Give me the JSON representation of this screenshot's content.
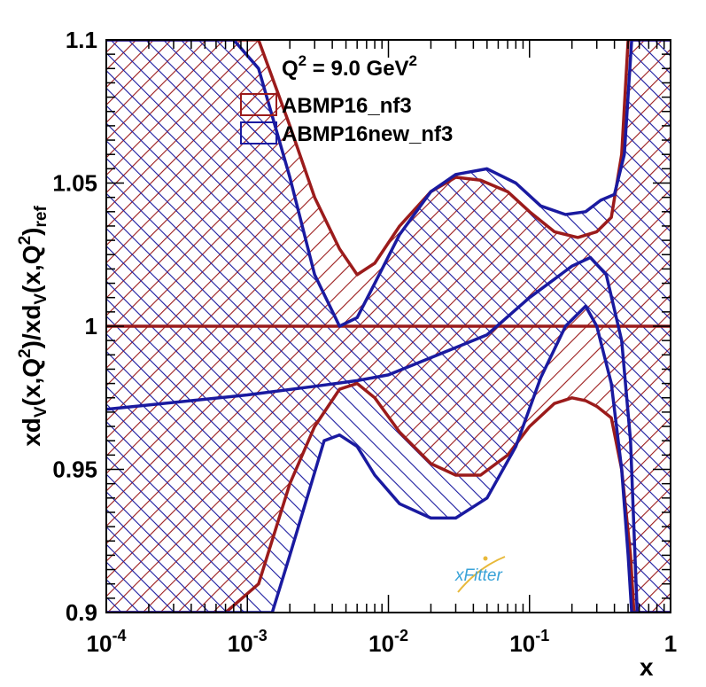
{
  "chart_data": {
    "type": "area",
    "x_scale": "log",
    "xlim": [
      0.0001,
      1
    ],
    "ylim": [
      0.9,
      1.1
    ],
    "xlabel": "x",
    "ylabel_parts": [
      "xd",
      "V",
      "(x,Q",
      "2",
      ")/xd",
      "V",
      "(x,Q",
      "2",
      ")",
      "ref"
    ],
    "x_tick_labels": [
      {
        "value": 0.0001,
        "base": "10",
        "exp": "-4"
      },
      {
        "value": 0.001,
        "base": "10",
        "exp": "-3"
      },
      {
        "value": 0.01,
        "base": "10",
        "exp": "-2"
      },
      {
        "value": 0.1,
        "base": "10",
        "exp": "-1"
      },
      {
        "value": 1,
        "base": "1",
        "exp": ""
      }
    ],
    "y_tick_labels": [
      {
        "value": 0.9,
        "label": "0.9"
      },
      {
        "value": 0.95,
        "label": "0.95"
      },
      {
        "value": 1.0,
        "label": "1"
      },
      {
        "value": 1.05,
        "label": "1.05"
      },
      {
        "value": 1.1,
        "label": "1.1"
      }
    ],
    "legend_title": {
      "text": "Q",
      "sup": "2",
      "rest": " = 9.0 GeV",
      "sup2": "2"
    },
    "legend_position": "top-center",
    "series": [
      {
        "name": "ABMP16_nf3",
        "color": "#9b1b1b",
        "hatch": "diagonal",
        "central": [
          [
            0.0001,
            1.0
          ],
          [
            1,
            1.0
          ]
        ],
        "upper": [
          [
            0.0001,
            1.1
          ],
          [
            0.0012,
            1.1
          ],
          [
            0.002,
            1.07
          ],
          [
            0.003,
            1.045
          ],
          [
            0.0045,
            1.027
          ],
          [
            0.006,
            1.018
          ],
          [
            0.008,
            1.022
          ],
          [
            0.012,
            1.035
          ],
          [
            0.02,
            1.047
          ],
          [
            0.03,
            1.052
          ],
          [
            0.045,
            1.051
          ],
          [
            0.07,
            1.047
          ],
          [
            0.1,
            1.04
          ],
          [
            0.15,
            1.033
          ],
          [
            0.22,
            1.031
          ],
          [
            0.3,
            1.033
          ],
          [
            0.38,
            1.038
          ],
          [
            0.45,
            1.06
          ],
          [
            0.5,
            1.1
          ],
          [
            1,
            1.1
          ]
        ],
        "lower": [
          [
            0.0001,
            0.9
          ],
          [
            0.0007,
            0.9
          ],
          [
            0.0012,
            0.91
          ],
          [
            0.002,
            0.945
          ],
          [
            0.003,
            0.965
          ],
          [
            0.0045,
            0.978
          ],
          [
            0.006,
            0.98
          ],
          [
            0.008,
            0.975
          ],
          [
            0.012,
            0.963
          ],
          [
            0.02,
            0.952
          ],
          [
            0.03,
            0.948
          ],
          [
            0.045,
            0.948
          ],
          [
            0.07,
            0.955
          ],
          [
            0.1,
            0.965
          ],
          [
            0.15,
            0.973
          ],
          [
            0.2,
            0.975
          ],
          [
            0.25,
            0.974
          ],
          [
            0.3,
            0.972
          ],
          [
            0.38,
            0.968
          ],
          [
            0.45,
            0.95
          ],
          [
            0.52,
            0.92
          ],
          [
            0.55,
            0.9
          ],
          [
            1,
            0.9
          ]
        ]
      },
      {
        "name": "ABMP16new_nf3",
        "color": "#1a1aa0",
        "hatch": "crosshatch",
        "central": [
          [
            0.0001,
            0.971
          ],
          [
            0.001,
            0.976
          ],
          [
            0.003,
            0.979
          ],
          [
            0.006,
            0.981
          ],
          [
            0.01,
            0.983
          ],
          [
            0.02,
            0.989
          ],
          [
            0.05,
            0.997
          ],
          [
            0.1,
            1.01
          ],
          [
            0.2,
            1.021
          ],
          [
            0.27,
            1.024
          ],
          [
            0.35,
            1.018
          ],
          [
            0.45,
            0.995
          ],
          [
            0.52,
            0.96
          ],
          [
            0.58,
            0.9
          ]
        ],
        "upper": [
          [
            0.0001,
            1.1
          ],
          [
            0.0008,
            1.1
          ],
          [
            0.0012,
            1.09
          ],
          [
            0.002,
            1.052
          ],
          [
            0.003,
            1.018
          ],
          [
            0.0045,
            1.0
          ],
          [
            0.006,
            1.003
          ],
          [
            0.008,
            1.015
          ],
          [
            0.012,
            1.032
          ],
          [
            0.02,
            1.047
          ],
          [
            0.03,
            1.053
          ],
          [
            0.05,
            1.055
          ],
          [
            0.08,
            1.05
          ],
          [
            0.12,
            1.042
          ],
          [
            0.18,
            1.039
          ],
          [
            0.25,
            1.04
          ],
          [
            0.32,
            1.044
          ],
          [
            0.4,
            1.046
          ],
          [
            0.47,
            1.06
          ],
          [
            0.53,
            1.1
          ],
          [
            0.6,
            1.1
          ],
          [
            1,
            1.1
          ]
        ],
        "lower": [
          [
            0.0001,
            0.9
          ],
          [
            0.0015,
            0.9
          ],
          [
            0.002,
            0.92
          ],
          [
            0.0035,
            0.96
          ],
          [
            0.0045,
            0.962
          ],
          [
            0.006,
            0.958
          ],
          [
            0.008,
            0.948
          ],
          [
            0.012,
            0.938
          ],
          [
            0.02,
            0.933
          ],
          [
            0.03,
            0.933
          ],
          [
            0.05,
            0.94
          ],
          [
            0.08,
            0.958
          ],
          [
            0.12,
            0.982
          ],
          [
            0.18,
            1.0
          ],
          [
            0.25,
            1.007
          ],
          [
            0.3,
            1.0
          ],
          [
            0.38,
            0.98
          ],
          [
            0.45,
            0.95
          ],
          [
            0.5,
            0.92
          ],
          [
            0.53,
            0.9
          ],
          [
            1,
            0.9
          ]
        ]
      }
    ],
    "logo_text": "xFitter"
  }
}
